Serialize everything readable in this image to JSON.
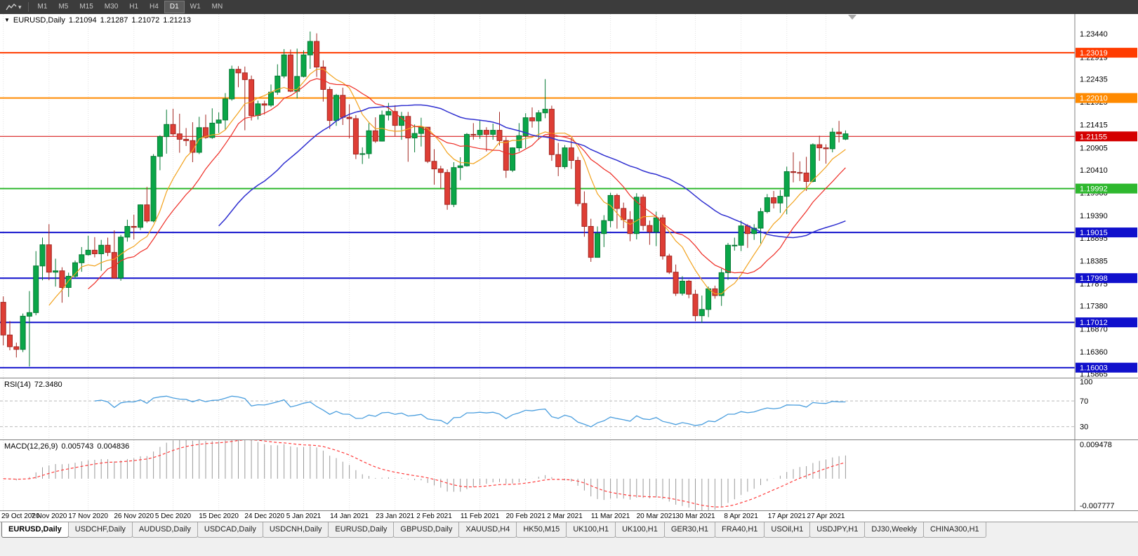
{
  "icons": {
    "collapse": "▼",
    "caret": "▾"
  },
  "toolbar": {
    "timeframes": [
      "M1",
      "M5",
      "M15",
      "M30",
      "H1",
      "H4",
      "D1",
      "W1",
      "MN"
    ],
    "active_timeframe": "D1"
  },
  "chart_header": {
    "symbol": "EURUSD,Daily",
    "open": "1.21094",
    "high": "1.21287",
    "low": "1.21072",
    "close": "1.21213"
  },
  "price_axis": {
    "ticks": [
      "1.23440",
      "1.22919",
      "1.22435",
      "1.21925",
      "1.21415",
      "1.20905",
      "1.20410",
      "1.19900",
      "1.19390",
      "1.18895",
      "1.18385",
      "1.17875",
      "1.17380",
      "1.16870",
      "1.16360",
      "1.15865"
    ]
  },
  "rsi": {
    "label": "RSI(14)",
    "value": "72.3480",
    "axis_ticks": [
      "100",
      "70",
      "30"
    ]
  },
  "macd": {
    "label": "MACD(12,26,9)",
    "value_main": "0.005743",
    "value_signal": "0.004836",
    "axis_ticks": [
      "0.009478",
      "-0.007777"
    ]
  },
  "tabs": {
    "active_index": 0,
    "items": [
      "EURUSD,Daily",
      "USDCHF,Daily",
      "AUDUSD,Daily",
      "USDCAD,Daily",
      "USDCNH,Daily",
      "EURUSD,Daily",
      "GBPUSD,Daily",
      "XAUUSD,H4",
      "HK50,M15",
      "UK100,H1",
      "UK100,H1",
      "GER30,H1",
      "FRA40,H1",
      "USOil,H1",
      "USDJPY,H1",
      "DJ30,Weekly",
      "CHINA300,H1"
    ]
  },
  "chart_data": {
    "type": "candlestick",
    "title": "EURUSD,Daily",
    "ylim": [
      1.1578,
      1.2388
    ],
    "colors": {
      "bull": "#0aa648",
      "bull_border": "#067a34",
      "bear": "#de3e35",
      "bear_border": "#a32722",
      "grid": "#e2e2e2",
      "axis_line": "#808080"
    },
    "levels": [
      {
        "price": 1.23019,
        "label": "1.23019",
        "color": "#ff3c00",
        "width": 2
      },
      {
        "price": 1.2201,
        "label": "1.22010",
        "color": "#ff8a00",
        "width": 2
      },
      {
        "price": 1.21155,
        "label": "1.21155",
        "color": "#d40000",
        "width": 1
      },
      {
        "price": 1.19992,
        "label": "1.19992",
        "color": "#2eb82e",
        "width": 2
      },
      {
        "price": 1.19015,
        "label": "1.19015",
        "color": "#1010cc",
        "width": 2
      },
      {
        "price": 1.17998,
        "label": "1.17998",
        "color": "#1010cc",
        "width": 2
      },
      {
        "price": 1.17012,
        "label": "1.17012",
        "color": "#1010cc",
        "width": 2
      },
      {
        "price": 1.16003,
        "label": "1.16003",
        "color": "#1010cc",
        "width": 2
      }
    ],
    "moving_averages": [
      {
        "name": "ma-fast-orange",
        "type": "sma",
        "period": 8,
        "color": "#f2a21c",
        "width": 1.2
      },
      {
        "name": "ma-mid-red",
        "type": "sma",
        "period": 14,
        "color": "#ee2c24",
        "width": 1.2
      },
      {
        "name": "ma-slow-blue",
        "type": "sma",
        "period": 34,
        "color": "#2f2fd0",
        "width": 1.5
      }
    ],
    "date_ticks": [
      {
        "label": "29 Oct 2020",
        "i": 0
      },
      {
        "label": "7 Nov 2020",
        "i": 7
      },
      {
        "label": "17 Nov 2020",
        "i": 13
      },
      {
        "label": "26 Nov 2020",
        "i": 20
      },
      {
        "label": "5 Dec 2020",
        "i": 26
      },
      {
        "label": "15 Dec 2020",
        "i": 33
      },
      {
        "label": "24 Dec 2020",
        "i": 40
      },
      {
        "label": "5 Jan 2021",
        "i": 46
      },
      {
        "label": "14 Jan 2021",
        "i": 53
      },
      {
        "label": "23 Jan 2021",
        "i": 60
      },
      {
        "label": "2 Feb 2021",
        "i": 66
      },
      {
        "label": "11 Feb 2021",
        "i": 73
      },
      {
        "label": "20 Feb 2021",
        "i": 80
      },
      {
        "label": "2 Mar 2021",
        "i": 86
      },
      {
        "label": "11 Mar 2021",
        "i": 93
      },
      {
        "label": "20 Mar 2021",
        "i": 100
      },
      {
        "label": "30 Mar 2021",
        "i": 106
      },
      {
        "label": "8 Apr 2021",
        "i": 113
      },
      {
        "label": "17 Apr 2021",
        "i": 120
      },
      {
        "label": "27 Apr 2021",
        "i": 126
      }
    ],
    "candles_ohlc": [
      [
        1.1746,
        1.1759,
        1.165,
        1.1673
      ],
      [
        1.1673,
        1.1704,
        1.1639,
        1.1647
      ],
      [
        1.1647,
        1.1656,
        1.1623,
        1.1641
      ],
      [
        1.1641,
        1.1721,
        1.1635,
        1.1715
      ],
      [
        1.1715,
        1.1771,
        1.1603,
        1.1723
      ],
      [
        1.1723,
        1.186,
        1.1717,
        1.1827
      ],
      [
        1.1827,
        1.189,
        1.1795,
        1.1874
      ],
      [
        1.1874,
        1.192,
        1.1795,
        1.1813
      ],
      [
        1.1813,
        1.1843,
        1.1781,
        1.1816
      ],
      [
        1.1816,
        1.1824,
        1.1745,
        1.1779
      ],
      [
        1.1779,
        1.1812,
        1.1758,
        1.1804
      ],
      [
        1.1804,
        1.1839,
        1.1799,
        1.1834
      ],
      [
        1.1834,
        1.1869,
        1.1814,
        1.1852
      ],
      [
        1.1852,
        1.1894,
        1.185,
        1.1862
      ],
      [
        1.1862,
        1.1891,
        1.1846,
        1.1854
      ],
      [
        1.1854,
        1.1885,
        1.1816,
        1.1873
      ],
      [
        1.1873,
        1.189,
        1.1849,
        1.1857
      ],
      [
        1.1857,
        1.1906,
        1.1799,
        1.18
      ],
      [
        1.18,
        1.1896,
        1.1794,
        1.1891
      ],
      [
        1.1891,
        1.193,
        1.1881,
        1.1915
      ],
      [
        1.1915,
        1.1941,
        1.1886,
        1.1913
      ],
      [
        1.1913,
        1.1964,
        1.1907,
        1.1963
      ],
      [
        1.1963,
        1.2003,
        1.1923,
        1.1927
      ],
      [
        1.1927,
        1.2076,
        1.1924,
        1.2071
      ],
      [
        1.2071,
        1.2118,
        1.204,
        1.2115
      ],
      [
        1.2115,
        1.2175,
        1.2077,
        1.2142
      ],
      [
        1.2142,
        1.2177,
        1.2116,
        1.2121
      ],
      [
        1.2121,
        1.2166,
        1.2079,
        1.2109
      ],
      [
        1.2109,
        1.2134,
        1.2094,
        1.2106
      ],
      [
        1.2106,
        1.2147,
        1.2058,
        1.208
      ],
      [
        1.208,
        1.2159,
        1.2076,
        1.2135
      ],
      [
        1.2135,
        1.2164,
        1.211,
        1.2113
      ],
      [
        1.2113,
        1.2178,
        1.211,
        1.2145
      ],
      [
        1.2145,
        1.2169,
        1.2123,
        1.2152
      ],
      [
        1.2152,
        1.2212,
        1.213,
        1.2199
      ],
      [
        1.2199,
        1.2273,
        1.2195,
        1.2265
      ],
      [
        1.2265,
        1.2272,
        1.2225,
        1.2257
      ],
      [
        1.2257,
        1.2271,
        1.2129,
        1.2242
      ],
      [
        1.2242,
        1.2251,
        1.2151,
        1.2162
      ],
      [
        1.2162,
        1.2195,
        1.2153,
        1.2188
      ],
      [
        1.2188,
        1.2195,
        1.2164,
        1.2185
      ],
      [
        1.2185,
        1.2231,
        1.2181,
        1.2214
      ],
      [
        1.2214,
        1.2276,
        1.2208,
        1.225
      ],
      [
        1.225,
        1.231,
        1.2245,
        1.2297
      ],
      [
        1.2297,
        1.2309,
        1.2214,
        1.2216
      ],
      [
        1.2216,
        1.2311,
        1.22,
        1.2249
      ],
      [
        1.2249,
        1.2307,
        1.2247,
        1.2297
      ],
      [
        1.2297,
        1.2349,
        1.2266,
        1.2327
      ],
      [
        1.2327,
        1.2345,
        1.2248,
        1.227
      ],
      [
        1.227,
        1.2285,
        1.2193,
        1.222
      ],
      [
        1.222,
        1.2226,
        1.2132,
        1.2151
      ],
      [
        1.2151,
        1.221,
        1.2139,
        1.2207
      ],
      [
        1.2207,
        1.2224,
        1.2141,
        1.2158
      ],
      [
        1.2158,
        1.2187,
        1.2111,
        1.2155
      ],
      [
        1.2155,
        1.2163,
        1.2065,
        1.2076
      ],
      [
        1.2076,
        1.2091,
        1.2054,
        1.2077
      ],
      [
        1.2077,
        1.2145,
        1.2066,
        1.2128
      ],
      [
        1.2128,
        1.2158,
        1.2101,
        1.2105
      ],
      [
        1.2105,
        1.2173,
        1.2104,
        1.2163
      ],
      [
        1.2163,
        1.219,
        1.2151,
        1.2171
      ],
      [
        1.2171,
        1.2185,
        1.2116,
        1.214
      ],
      [
        1.214,
        1.217,
        1.2108,
        1.216
      ],
      [
        1.216,
        1.217,
        1.2059,
        1.2112
      ],
      [
        1.2112,
        1.2142,
        1.208,
        1.2122
      ],
      [
        1.2122,
        1.2157,
        1.2093,
        1.2136
      ],
      [
        1.2136,
        1.2136,
        1.2056,
        1.206
      ],
      [
        1.206,
        1.2087,
        1.2008,
        1.2043
      ],
      [
        1.2043,
        1.205,
        1.1999,
        1.2035
      ],
      [
        1.2035,
        1.2042,
        1.1952,
        1.1964
      ],
      [
        1.1964,
        1.2058,
        1.1958,
        1.2046
      ],
      [
        1.2046,
        1.2069,
        1.2018,
        1.205
      ],
      [
        1.205,
        1.2123,
        1.2048,
        1.212
      ],
      [
        1.212,
        1.2145,
        1.2108,
        1.2119
      ],
      [
        1.2119,
        1.2151,
        1.211,
        1.2129
      ],
      [
        1.2129,
        1.2136,
        1.2082,
        1.212
      ],
      [
        1.212,
        1.2144,
        1.2108,
        1.2129
      ],
      [
        1.2129,
        1.217,
        1.2095,
        1.2106
      ],
      [
        1.2106,
        1.2114,
        1.2023,
        1.204
      ],
      [
        1.204,
        1.2091,
        1.2036,
        1.209
      ],
      [
        1.209,
        1.2145,
        1.2082,
        1.2117
      ],
      [
        1.2117,
        1.2167,
        1.2089,
        1.2157
      ],
      [
        1.2157,
        1.218,
        1.2135,
        1.215
      ],
      [
        1.215,
        1.2174,
        1.2108,
        1.2168
      ],
      [
        1.2168,
        1.2243,
        1.2156,
        1.2176
      ],
      [
        1.2176,
        1.2184,
        1.2061,
        1.2075
      ],
      [
        1.2075,
        1.2101,
        1.2027,
        1.2048
      ],
      [
        1.2048,
        1.2096,
        1.2043,
        1.209
      ],
      [
        1.209,
        1.2113,
        1.2043,
        1.2062
      ],
      [
        1.2062,
        1.207,
        1.196,
        1.1966
      ],
      [
        1.1966,
        1.1993,
        1.1892,
        1.1915
      ],
      [
        1.1915,
        1.1932,
        1.1836,
        1.1846
      ],
      [
        1.1846,
        1.1915,
        1.1846,
        1.1899
      ],
      [
        1.1899,
        1.194,
        1.1869,
        1.1928
      ],
      [
        1.1928,
        1.199,
        1.1913,
        1.1984
      ],
      [
        1.1984,
        1.1988,
        1.191,
        1.1955
      ],
      [
        1.1955,
        1.1968,
        1.1911,
        1.193
      ],
      [
        1.193,
        1.1949,
        1.1882,
        1.1899
      ],
      [
        1.1899,
        1.1989,
        1.1886,
        1.198
      ],
      [
        1.198,
        1.1986,
        1.1906,
        1.1917
      ],
      [
        1.1917,
        1.1928,
        1.1874,
        1.1903
      ],
      [
        1.1903,
        1.1948,
        1.1871,
        1.1934
      ],
      [
        1.1934,
        1.1941,
        1.1841,
        1.1849
      ],
      [
        1.1849,
        1.1854,
        1.1809,
        1.1813
      ],
      [
        1.1813,
        1.183,
        1.176,
        1.1766
      ],
      [
        1.1766,
        1.1804,
        1.1761,
        1.1793
      ],
      [
        1.1793,
        1.1796,
        1.1755,
        1.1764
      ],
      [
        1.1764,
        1.1774,
        1.1704,
        1.1716
      ],
      [
        1.1716,
        1.1761,
        1.17,
        1.173
      ],
      [
        1.173,
        1.1781,
        1.1713,
        1.1776
      ],
      [
        1.1776,
        1.1783,
        1.1754,
        1.1761
      ],
      [
        1.1761,
        1.1821,
        1.1738,
        1.1812
      ],
      [
        1.1812,
        1.1878,
        1.1796,
        1.1873
      ],
      [
        1.1873,
        1.189,
        1.1861,
        1.1873
      ],
      [
        1.1873,
        1.1928,
        1.186,
        1.1916
      ],
      [
        1.1916,
        1.192,
        1.1867,
        1.1899
      ],
      [
        1.1899,
        1.192,
        1.1885,
        1.1911
      ],
      [
        1.1911,
        1.1956,
        1.1877,
        1.1948
      ],
      [
        1.1948,
        1.1987,
        1.1944,
        1.1979
      ],
      [
        1.1979,
        1.1994,
        1.1955,
        1.1967
      ],
      [
        1.1967,
        1.1996,
        1.1945,
        1.1982
      ],
      [
        1.1982,
        1.2048,
        1.1942,
        1.2037
      ],
      [
        1.2037,
        1.208,
        1.2013,
        1.2035
      ],
      [
        1.2035,
        1.206,
        1.2016,
        1.2034
      ],
      [
        1.2034,
        1.207,
        1.1994,
        1.2015
      ],
      [
        1.2015,
        1.21,
        1.2013,
        1.2097
      ],
      [
        1.2097,
        1.2117,
        1.2061,
        1.209
      ],
      [
        1.209,
        1.2098,
        1.2055,
        1.2088
      ],
      [
        1.2088,
        1.2134,
        1.208,
        1.2125
      ],
      [
        1.2125,
        1.215,
        1.2102,
        1.2121
      ],
      [
        1.21094,
        1.21287,
        1.21072,
        1.21213
      ]
    ],
    "indicators": {
      "rsi": {
        "period": 14,
        "color": "#4a9ede",
        "levels": [
          70,
          30
        ],
        "ylim": [
          10,
          105
        ]
      },
      "macd": {
        "fast": 12,
        "slow": 26,
        "signal": 9,
        "hist_color": "#9a9a9a",
        "signal_color": "#ff3b3b",
        "ylim": [
          -0.007777,
          0.009478
        ]
      }
    }
  }
}
